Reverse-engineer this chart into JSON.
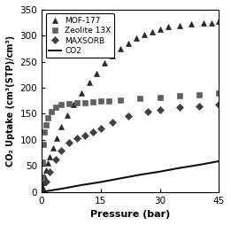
{
  "title": "",
  "xlabel": "Pressure (bar)",
  "ylabel": "CO₂ Uptake (cm³(STP)/cm³)",
  "xlim": [
    0,
    45
  ],
  "ylim": [
    0,
    350
  ],
  "xticks": [
    0,
    15,
    30,
    45
  ],
  "yticks": [
    0,
    50,
    100,
    150,
    200,
    250,
    300,
    350
  ],
  "mof177_x": [
    0.08,
    0.2,
    0.4,
    0.7,
    1.0,
    1.5,
    2.0,
    2.8,
    3.8,
    5.0,
    6.5,
    8.0,
    10.0,
    12.0,
    14.0,
    16.0,
    18.0,
    20.0,
    22.0,
    24.0,
    26.0,
    28.0,
    30.0,
    32.0,
    35.0,
    38.0,
    41.0,
    43.0,
    45.0
  ],
  "mof177_y": [
    3,
    9,
    18,
    30,
    42,
    56,
    68,
    85,
    103,
    125,
    148,
    168,
    190,
    210,
    228,
    248,
    262,
    275,
    285,
    295,
    302,
    308,
    313,
    317,
    320,
    322,
    324,
    325,
    327
  ],
  "zeolite_x": [
    0.08,
    0.2,
    0.4,
    0.7,
    1.0,
    1.5,
    2.5,
    3.5,
    5.0,
    7.0,
    9.0,
    11.0,
    13.0,
    15.0,
    17.0,
    20.0,
    25.0,
    30.0,
    35.0,
    40.0,
    45.0
  ],
  "zeolite_y": [
    28,
    58,
    92,
    115,
    128,
    142,
    155,
    163,
    168,
    170,
    171,
    172,
    173,
    174,
    175,
    177,
    179,
    182,
    185,
    187,
    190
  ],
  "maxsorb_x": [
    1.0,
    2.0,
    3.5,
    5.0,
    7.0,
    9.0,
    11.0,
    13.0,
    15.0,
    18.0,
    22.0,
    27.0,
    30.0,
    35.0,
    40.0,
    45.0
  ],
  "maxsorb_y": [
    20,
    38,
    62,
    80,
    95,
    103,
    108,
    115,
    122,
    133,
    145,
    155,
    158,
    162,
    165,
    168
  ],
  "co2_x": [
    0,
    5,
    10,
    15,
    20,
    25,
    30,
    35,
    40,
    45
  ],
  "co2_y": [
    0,
    6,
    13,
    19,
    26,
    33,
    39,
    46,
    52,
    59
  ],
  "legend_labels": [
    "MOF-177",
    "Zeolite 13X",
    "MAXSORB",
    "CO2"
  ],
  "marker_mof177": "^",
  "marker_zeolite": "s",
  "marker_maxsorb": "D",
  "color_mof177": "#2a2a2a",
  "color_zeolite": "#606060",
  "color_maxsorb": "#404040",
  "color_co2": "#111111",
  "background": "#ffffff"
}
